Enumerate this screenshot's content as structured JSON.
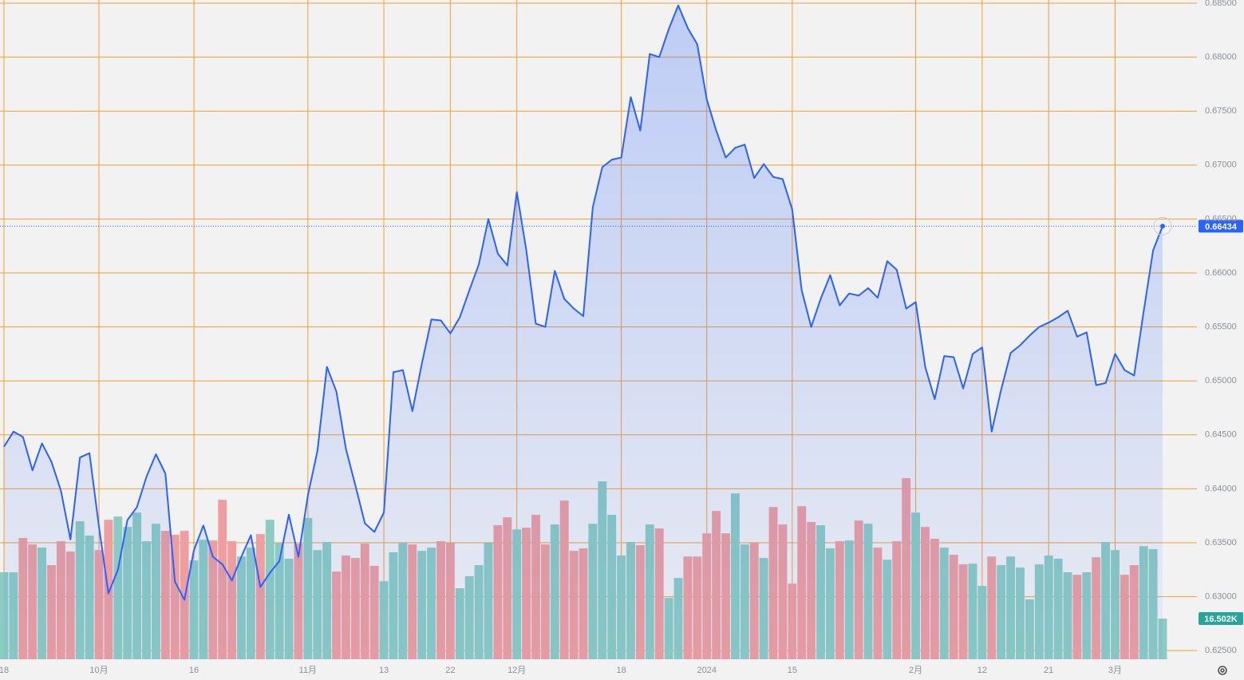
{
  "chart_data": {
    "type": "line",
    "x": [
      "18",
      null,
      null,
      null,
      null,
      null,
      null,
      null,
      null,
      null,
      "10月",
      null,
      null,
      null,
      null,
      null,
      null,
      null,
      null,
      null,
      "16",
      null,
      null,
      null,
      null,
      null,
      null,
      null,
      null,
      null,
      null,
      null,
      "11月",
      null,
      null,
      null,
      null,
      null,
      null,
      null,
      "13",
      null,
      null,
      null,
      null,
      null,
      null,
      "22",
      null,
      null,
      null,
      null,
      null,
      null,
      "12月",
      null,
      null,
      null,
      null,
      null,
      null,
      null,
      null,
      null,
      null,
      "18",
      null,
      null,
      null,
      null,
      null,
      null,
      null,
      null,
      "2024",
      null,
      null,
      null,
      null,
      null,
      null,
      null,
      null,
      "15",
      null,
      null,
      null,
      null,
      null,
      null,
      null,
      null,
      null,
      null,
      null,
      null,
      "2月",
      null,
      null,
      null,
      null,
      null,
      null,
      "12",
      null,
      null,
      null,
      null,
      null,
      null,
      "21",
      null,
      null,
      null,
      null,
      null,
      null,
      "3月",
      null,
      null,
      null,
      null,
      null
    ],
    "series": [
      {
        "color": "#2962ff",
        "area": true,
        "values": [
          0.6439,
          0.6453,
          0.6448,
          0.6417,
          0.6442,
          0.6425,
          0.6398,
          0.6353,
          0.6429,
          0.6433,
          0.6365,
          0.6303,
          0.6325,
          0.6371,
          0.6383,
          0.6411,
          0.6432,
          0.6414,
          0.6314,
          0.6297,
          0.6343,
          0.6366,
          0.6337,
          0.633,
          0.6315,
          0.6337,
          0.6357,
          0.6309,
          0.6322,
          0.6333,
          0.6376,
          0.6337,
          0.6394,
          0.6435,
          0.6513,
          0.649,
          0.6437,
          0.6403,
          0.6368,
          0.636,
          0.6378,
          0.6508,
          0.651,
          0.6472,
          0.6516,
          0.6557,
          0.6556,
          0.6544,
          0.6559,
          0.6584,
          0.6608,
          0.665,
          0.6618,
          0.6607,
          0.6675,
          0.6621,
          0.6553,
          0.655,
          0.6602,
          0.6576,
          0.6567,
          0.656,
          0.6661,
          0.6698,
          0.6705,
          0.6707,
          0.6763,
          0.6732,
          0.6803,
          0.68,
          0.6826,
          0.6848,
          0.6827,
          0.6812,
          0.6761,
          0.6732,
          0.6707,
          0.6716,
          0.6719,
          0.6688,
          0.6701,
          0.6689,
          0.6687,
          0.6659,
          0.6584,
          0.655,
          0.6576,
          0.6598,
          0.657,
          0.6581,
          0.6579,
          0.6586,
          0.6577,
          0.6611,
          0.6603,
          0.6567,
          0.6573,
          0.6513,
          0.6483,
          0.6523,
          0.6522,
          0.6493,
          0.6525,
          0.6531,
          0.6453,
          0.6492,
          0.6526,
          0.6533,
          0.6542,
          0.655,
          0.6554,
          0.6559,
          0.6565,
          0.6541,
          0.6545,
          0.6496,
          0.6498,
          0.6525,
          0.651,
          0.6505,
          0.6564,
          0.6621,
          0.66434
        ]
      }
    ],
    "ylim": [
      0.6242,
      0.6853
    ],
    "yticks": [
      {
        "value": 0.625,
        "label": "0.62500"
      },
      {
        "value": 0.63,
        "label": "0.63000"
      },
      {
        "value": 0.635,
        "label": "0.63500"
      },
      {
        "value": 0.64,
        "label": "0.64000"
      },
      {
        "value": 0.645,
        "label": "0.64500"
      },
      {
        "value": 0.65,
        "label": "0.65000"
      },
      {
        "value": 0.655,
        "label": "0.65500"
      },
      {
        "value": 0.66,
        "label": "0.66000"
      },
      {
        "value": 0.665,
        "label": "0.66500"
      },
      {
        "value": 0.67,
        "label": "0.67000"
      },
      {
        "value": 0.675,
        "label": "0.67500"
      },
      {
        "value": 0.68,
        "label": "0.68000"
      },
      {
        "value": 0.685,
        "label": "0.68500"
      }
    ],
    "grid": true,
    "grid_color": "#f0a030",
    "volume": {
      "type": "bar",
      "up_color": "#8ccbc1",
      "down_color": "#ee9e9e",
      "ylim": [
        0,
        80
      ],
      "values": [
        35.3,
        35.3,
        49.2,
        46.6,
        45.3,
        38.2,
        47.9,
        43.7,
        56.0,
        50.2,
        44.3,
        56.6,
        57.9,
        53.7,
        59.5,
        47.9,
        55.0,
        52.1,
        50.5,
        52.1,
        40.1,
        48.5,
        48.2,
        64.7,
        47.9,
        41.7,
        45.3,
        50.8,
        56.6,
        47.2,
        40.8,
        46.9,
        57.3,
        44.3,
        47.6,
        35.6,
        42.1,
        41.1,
        46.9,
        37.9,
        31.7,
        43.4,
        47.2,
        46.6,
        44.0,
        45.3,
        47.9,
        47.2,
        28.8,
        33.7,
        38.2,
        47.2,
        54.4,
        57.6,
        52.7,
        53.4,
        58.6,
        46.6,
        54.7,
        64.4,
        44.0,
        45.0,
        55.0,
        72.2,
        58.6,
        42.1,
        47.6,
        46.3,
        54.7,
        53.1,
        24.9,
        33.0,
        41.7,
        41.7,
        51.1,
        60.2,
        51.1,
        67.3,
        46.6,
        47.2,
        41.1,
        61.8,
        54.7,
        30.7,
        62.1,
        55.7,
        54.4,
        45.0,
        47.9,
        48.2,
        56.3,
        55.0,
        45.3,
        40.4,
        47.9,
        73.5,
        59.5,
        53.7,
        48.9,
        45.3,
        42.4,
        38.5,
        38.8,
        29.8,
        41.7,
        38.2,
        41.7,
        37.2,
        24.3,
        38.5,
        42.1,
        40.8,
        35.3,
        34.3,
        35.3,
        41.4,
        47.6,
        44.3,
        34.3,
        38.2,
        45.9,
        44.7,
        16.502
      ],
      "up": [
        true,
        true,
        false,
        false,
        true,
        false,
        false,
        false,
        true,
        true,
        false,
        false,
        true,
        true,
        true,
        true,
        true,
        false,
        false,
        false,
        true,
        true,
        false,
        false,
        false,
        true,
        true,
        false,
        true,
        true,
        true,
        false,
        true,
        true,
        true,
        false,
        false,
        false,
        false,
        false,
        true,
        true,
        true,
        false,
        true,
        true,
        false,
        false,
        true,
        true,
        true,
        true,
        false,
        false,
        true,
        false,
        false,
        false,
        true,
        false,
        false,
        false,
        true,
        true,
        true,
        true,
        true,
        false,
        true,
        false,
        true,
        true,
        false,
        false,
        false,
        false,
        false,
        true,
        true,
        false,
        true,
        false,
        false,
        false,
        false,
        false,
        true,
        true,
        false,
        true,
        false,
        true,
        false,
        true,
        false,
        false,
        true,
        false,
        false,
        true,
        false,
        false,
        true,
        true,
        false,
        true,
        true,
        true,
        true,
        true,
        true,
        true,
        true,
        false,
        true,
        false,
        true,
        true,
        false,
        false,
        true,
        true,
        true
      ],
      "value_labels": {
        "122": "16.502K"
      }
    }
  }
}
